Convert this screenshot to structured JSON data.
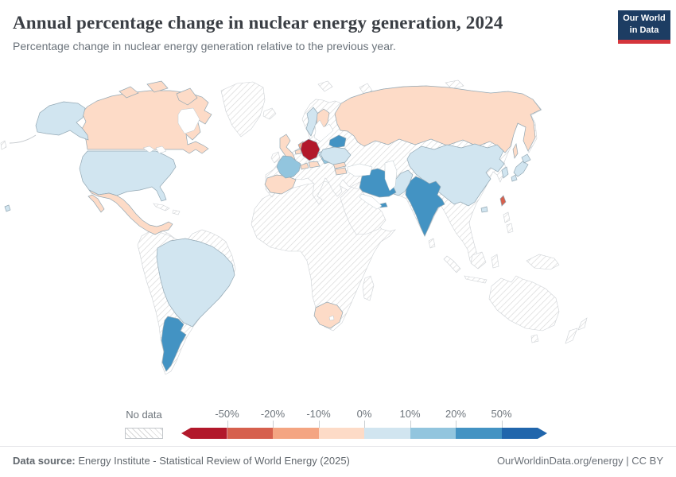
{
  "header": {
    "title": "Annual percentage change in nuclear energy generation, 2024",
    "subtitle": "Percentage change in nuclear energy generation relative to the previous year."
  },
  "logo": {
    "line1": "Our World",
    "line2": "in Data",
    "bg_color": "#1d3d63",
    "accent_color": "#d5353c"
  },
  "legend": {
    "no_data_label": "No data",
    "ticks": [
      "-50%",
      "-20%",
      "-10%",
      "0%",
      "10%",
      "20%",
      "50%"
    ]
  },
  "footer": {
    "source_label": "Data source:",
    "source_text": " Energy Institute - Statistical Review of World Energy (2025)",
    "credit": "OurWorldinData.org/energy | CC BY"
  },
  "chart_data": {
    "type": "choropleth-map",
    "title": "Annual percentage change in nuclear energy generation, 2024",
    "unit": "% change vs previous year",
    "legend_position": "bottom",
    "no_data_style": "diagonal-hatch",
    "bins": [
      {
        "label": "< -50%",
        "color": "#b2182b"
      },
      {
        "label": "-50% to -20%",
        "color": "#d6604d"
      },
      {
        "label": "-20% to -10%",
        "color": "#f4a582"
      },
      {
        "label": "-10% to 0%",
        "color": "#fddbc7"
      },
      {
        "label": "0% to 10%",
        "color": "#d1e5f0"
      },
      {
        "label": "10% to 20%",
        "color": "#92c5de"
      },
      {
        "label": "20% to 50%",
        "color": "#4393c3"
      },
      {
        "label": "> 50%",
        "color": "#2166ac"
      }
    ],
    "countries": [
      {
        "name": "Germany",
        "change_bin": "< -50%"
      },
      {
        "name": "Taiwan",
        "change_bin": "-50% to -20%"
      },
      {
        "name": "Netherlands",
        "change_bin": "-20% to -10%"
      },
      {
        "name": "Canada",
        "change_bin": "-10% to 0%"
      },
      {
        "name": "Mexico",
        "change_bin": "-10% to 0%"
      },
      {
        "name": "Russia",
        "change_bin": "-10% to 0%"
      },
      {
        "name": "United Kingdom",
        "change_bin": "-10% to 0%"
      },
      {
        "name": "Spain",
        "change_bin": "-10% to 0%"
      },
      {
        "name": "Belgium",
        "change_bin": "-10% to 0%"
      },
      {
        "name": "Switzerland",
        "change_bin": "-10% to 0%"
      },
      {
        "name": "Austria",
        "change_bin": "-10% to 0%"
      },
      {
        "name": "Finland",
        "change_bin": "-10% to 0%"
      },
      {
        "name": "Romania",
        "change_bin": "-10% to 0%"
      },
      {
        "name": "Bulgaria",
        "change_bin": "-10% to 0%"
      },
      {
        "name": "Armenia",
        "change_bin": "-10% to 0%"
      },
      {
        "name": "South Africa",
        "change_bin": "-10% to 0%"
      },
      {
        "name": "United States",
        "change_bin": "0% to 10%"
      },
      {
        "name": "Brazil",
        "change_bin": "0% to 10%"
      },
      {
        "name": "China",
        "change_bin": "0% to 10%"
      },
      {
        "name": "Japan",
        "change_bin": "0% to 10%"
      },
      {
        "name": "South Korea",
        "change_bin": "0% to 10%"
      },
      {
        "name": "Ukraine",
        "change_bin": "0% to 10%"
      },
      {
        "name": "Sweden",
        "change_bin": "0% to 10%"
      },
      {
        "name": "Pakistan",
        "change_bin": "0% to 10%"
      },
      {
        "name": "Czechia",
        "change_bin": "0% to 10%"
      },
      {
        "name": "France",
        "change_bin": "10% to 20%"
      },
      {
        "name": "Slovakia",
        "change_bin": "10% to 20%"
      },
      {
        "name": "Hungary",
        "change_bin": "10% to 20%"
      },
      {
        "name": "Belarus",
        "change_bin": "20% to 50%"
      },
      {
        "name": "India",
        "change_bin": "20% to 50%"
      },
      {
        "name": "Iran",
        "change_bin": "20% to 50%"
      },
      {
        "name": "Argentina",
        "change_bin": "20% to 50%"
      },
      {
        "name": "United Arab Emirates",
        "change_bin": "20% to 50%"
      }
    ],
    "no_data_regions": [
      "Greenland",
      "Iceland",
      "Ireland",
      "Norway",
      "Poland",
      "Central America",
      "Cuba",
      "most of South America (Andes, Chile, Venezuela)",
      "most of Africa",
      "Turkey",
      "Middle East (Saudi Arabia, Iraq)",
      "Kazakhstan",
      "Central Asia",
      "Mongolia",
      "Southeast Asia",
      "Indonesia",
      "Philippines",
      "Australia",
      "New Zealand"
    ]
  }
}
